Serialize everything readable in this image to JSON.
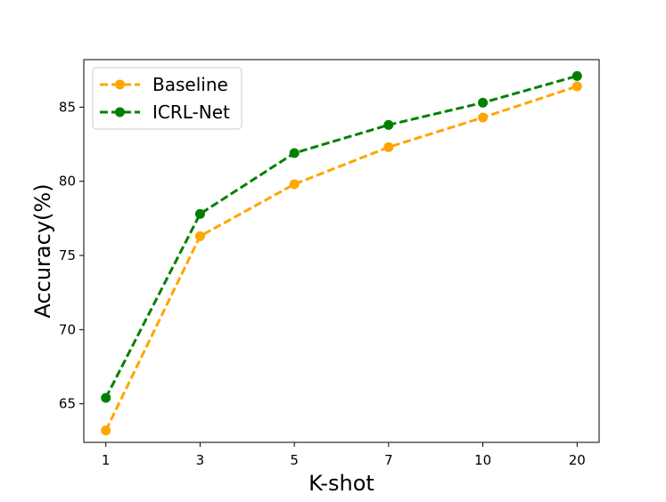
{
  "chart_data": {
    "type": "line",
    "title": "",
    "xlabel": "K-shot",
    "ylabel": "Accuracy(%)",
    "categories": [
      "1",
      "3",
      "5",
      "7",
      "10",
      "20"
    ],
    "ylim": [
      62.4,
      88.2
    ],
    "yticks": [
      65,
      70,
      75,
      80,
      85
    ],
    "grid": false,
    "legend_position": "upper-left",
    "series": [
      {
        "name": "Baseline",
        "color": "#FFA500",
        "line_style": "dashed",
        "marker": "circle",
        "values": [
          63.2,
          76.3,
          79.8,
          82.3,
          84.3,
          86.4
        ]
      },
      {
        "name": "ICRL-Net",
        "color": "#008000",
        "line_style": "dashed",
        "marker": "circle",
        "values": [
          65.4,
          77.8,
          81.9,
          83.8,
          85.3,
          87.1
        ]
      }
    ]
  }
}
